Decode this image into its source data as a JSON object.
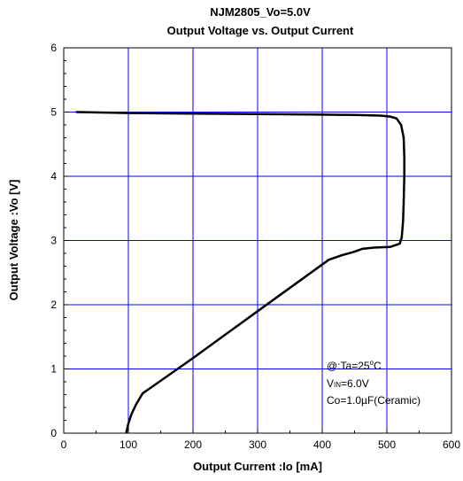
{
  "chart_data": {
    "type": "line",
    "title": "NJM2805_Vo=5.0V",
    "subtitle": "Output Voltage vs. Output Current",
    "xlabel": "Output Current :Io [mA]",
    "ylabel": "Output Voltage :Vo [V]",
    "xlim": [
      0,
      600
    ],
    "ylim": [
      0,
      6
    ],
    "x_ticks": [
      "0",
      "100",
      "200",
      "300",
      "400",
      "500",
      "600"
    ],
    "y_ticks": [
      "0",
      "1",
      "2",
      "3",
      "4",
      "5",
      "6"
    ],
    "grid": true,
    "grid_color": "#0000ff",
    "line_color": "#000000",
    "series": [
      {
        "points": [
          [
            20,
            5.0
          ],
          [
            100,
            4.985
          ],
          [
            200,
            4.975
          ],
          [
            300,
            4.97
          ],
          [
            400,
            4.96
          ],
          [
            450,
            4.955
          ],
          [
            490,
            4.945
          ],
          [
            505,
            4.93
          ],
          [
            515,
            4.9
          ],
          [
            522,
            4.8
          ],
          [
            526,
            4.6
          ],
          [
            527,
            4.3
          ],
          [
            527,
            4.0
          ],
          [
            526,
            3.6
          ],
          [
            525,
            3.3
          ],
          [
            523,
            3.05
          ],
          [
            520,
            2.95
          ],
          [
            505,
            2.9
          ],
          [
            480,
            2.89
          ],
          [
            462,
            2.87
          ],
          [
            448,
            2.82
          ],
          [
            430,
            2.77
          ],
          [
            410,
            2.7
          ],
          [
            300,
            1.9
          ],
          [
            200,
            1.17
          ],
          [
            122,
            0.62
          ],
          [
            112,
            0.45
          ],
          [
            105,
            0.3
          ],
          [
            100,
            0.15
          ],
          [
            97,
            0.02
          ]
        ]
      }
    ],
    "annotations": {
      "line1_prefix": "@:Ta=25",
      "line1_sup": "o",
      "line1_suffix": "C",
      "line2_prefix": "V",
      "line2_sub": "IN",
      "line2_suffix": "=6.0V",
      "line3": "Co=1.0µF(Ceramic)"
    }
  }
}
